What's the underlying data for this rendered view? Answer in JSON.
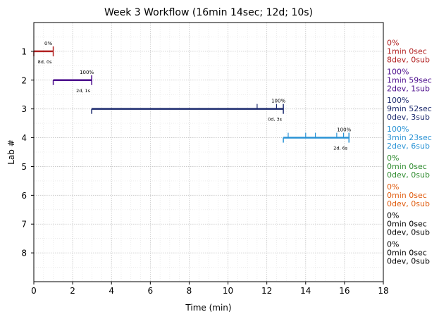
{
  "chart_data": {
    "type": "timeline",
    "title": "Week 3 Workflow (16min 14sec; 12d; 10s)",
    "xlabel": "Time (min)",
    "ylabel": "Lab #",
    "xlim": [
      0,
      18
    ],
    "x_ticks": [
      "0",
      "2",
      "4",
      "6",
      "8",
      "10",
      "12",
      "14",
      "16",
      "18"
    ],
    "ylim": [
      0,
      9
    ],
    "y_ticks": [
      "1",
      "2",
      "3",
      "4",
      "5",
      "6",
      "7",
      "8"
    ],
    "grid": true,
    "labs": [
      {
        "lab": 1,
        "color": "#b22222",
        "start": 0.0,
        "end": 1.0,
        "ticks": [],
        "bar_pct": "0%",
        "bar_note": "8d, 0s",
        "side": [
          "0%",
          "1min 0sec",
          "8dev, 0sub"
        ]
      },
      {
        "lab": 2,
        "color": "#4b0c8c",
        "start": 1.0,
        "end": 2.98,
        "ticks": [],
        "bar_pct": "100%",
        "bar_note": "2d, 1s",
        "side": [
          "100%",
          "1min 59sec",
          "2dev, 1sub"
        ]
      },
      {
        "lab": 3,
        "color": "#1c2a6e",
        "start": 2.98,
        "end": 12.85,
        "ticks": [
          11.5,
          12.5
        ],
        "bar_pct": "100%",
        "bar_note": "0d, 3s",
        "side": [
          "100%",
          "9min 52sec",
          "0dev, 3sub"
        ]
      },
      {
        "lab": 4,
        "color": "#2a93d5",
        "start": 12.85,
        "end": 16.23,
        "ticks": [
          13.1,
          14.0,
          14.5,
          15.6,
          15.95
        ],
        "bar_pct": "100%",
        "bar_note": "2d, 6s",
        "side": [
          "100%",
          "3min 23sec",
          "2dev, 6sub"
        ]
      },
      {
        "lab": 5,
        "color": "#2e8b2e",
        "side": [
          "0%",
          "0min 0sec",
          "0dev, 0sub"
        ]
      },
      {
        "lab": 6,
        "color": "#e05a0c",
        "side": [
          "0%",
          "0min 0sec",
          "0dev, 0sub"
        ]
      },
      {
        "lab": 7,
        "color": "#000000",
        "side": [
          "0%",
          "0min 0sec",
          "0dev, 0sub"
        ]
      },
      {
        "lab": 8,
        "color": "#000000",
        "side": [
          "0%",
          "0min 0sec",
          "0dev, 0sub"
        ]
      }
    ]
  }
}
